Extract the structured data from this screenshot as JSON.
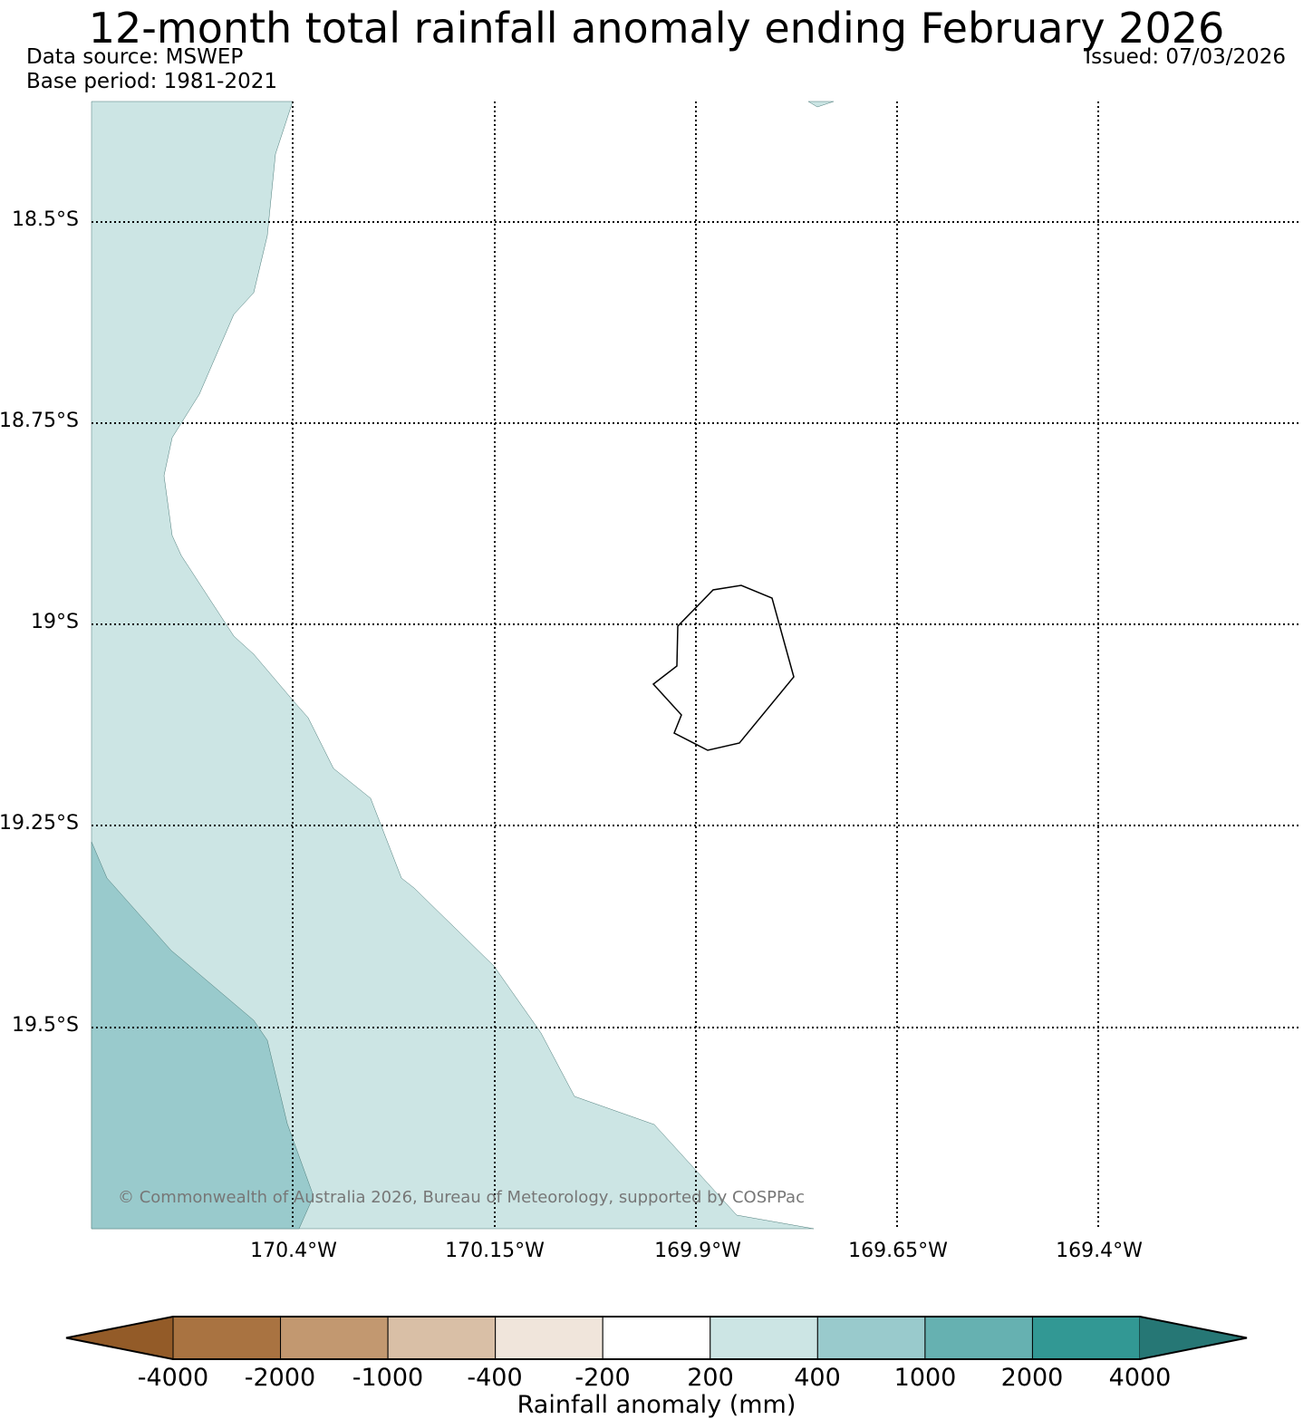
{
  "title": "12-month total rainfall anomaly ending February 2026",
  "data_source": "Data source: MSWEP",
  "base_period": "Base period: 1981-2021",
  "issued": "Issued: 07/03/2026",
  "credit": "© Commonwealth of Australia 2026, Bureau of Meteorology, supported by COSPPac",
  "lat_labels": [
    "18.5°S",
    "18.75°S",
    "19°S",
    "19.25°S",
    "19.5°S"
  ],
  "lon_labels": [
    "170.4°W",
    "170.15°W",
    "169.9°W",
    "169.65°W",
    "169.4°W"
  ],
  "colorbar": {
    "title": "Rainfall anomaly (mm)",
    "ticks": [
      "-4000",
      "-2000",
      "-1000",
      "-400",
      "-200",
      "200",
      "400",
      "1000",
      "2000",
      "4000"
    ],
    "colors": [
      "#935b28",
      "#a97341",
      "#c29870",
      "#d9bfa6",
      "#f0e5db",
      "#ffffff",
      "#cce5e4",
      "#99cacc",
      "#66b1b1",
      "#329894",
      "#267775"
    ]
  },
  "colors": {
    "light_teal": "#cce5e4",
    "mid_teal": "#99cacc",
    "coastline": "#000000"
  }
}
